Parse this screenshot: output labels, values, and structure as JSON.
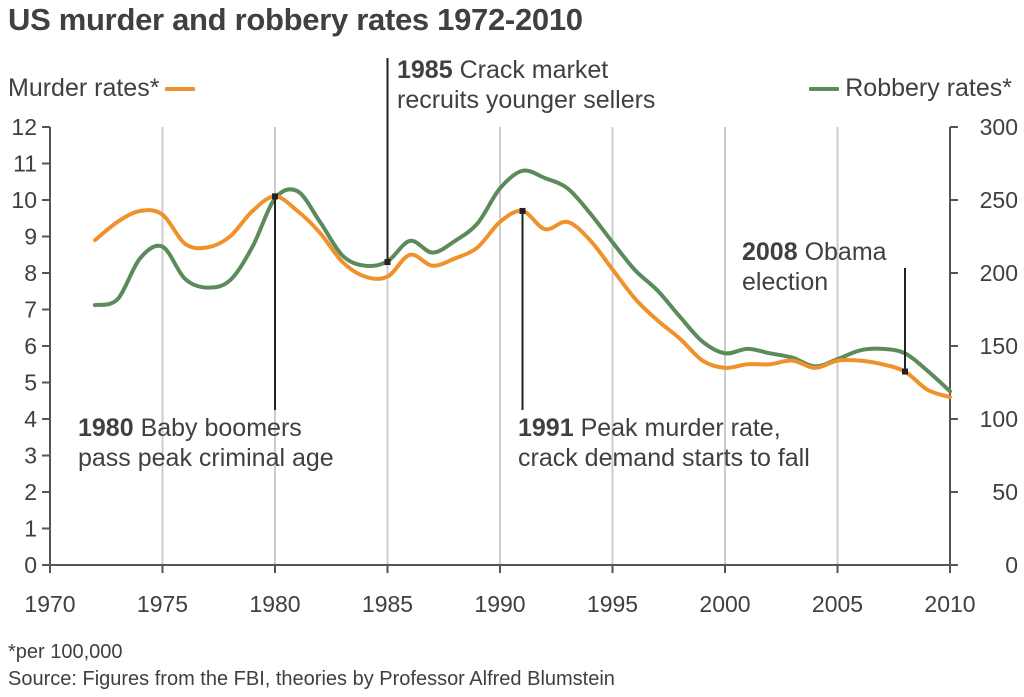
{
  "title": "US murder and robbery rates 1972-2010",
  "legend": {
    "murder": "Murder rates*",
    "robbery": "Robbery rates*"
  },
  "footnote": "*per 100,000",
  "source": "Source: Figures from the FBI, theories by Professor Alfred Blumstein",
  "colors": {
    "murder": "#f0922b",
    "robbery": "#5b8a5b",
    "grid": "#cccccc",
    "axis": "#555555",
    "text": "#404040"
  },
  "chart_data": {
    "type": "line",
    "title": "US murder and robbery rates 1972-2010",
    "x_ticks": [
      1970,
      1975,
      1980,
      1985,
      1990,
      1995,
      2000,
      2005,
      2010
    ],
    "xlim": [
      1970,
      2010
    ],
    "left_axis": {
      "ylim": [
        0,
        12
      ],
      "ticks": [
        0,
        1,
        2,
        3,
        4,
        5,
        6,
        7,
        8,
        9,
        10,
        11,
        12
      ]
    },
    "right_axis": {
      "ylim": [
        0,
        300
      ],
      "ticks": [
        0,
        50,
        100,
        150,
        200,
        250,
        300
      ]
    },
    "grid": "vertical",
    "legend_position": "top",
    "series": [
      {
        "name": "Murder rates*",
        "axis": "left",
        "x": [
          1972,
          1973,
          1974,
          1975,
          1976,
          1977,
          1978,
          1979,
          1980,
          1981,
          1982,
          1983,
          1984,
          1985,
          1986,
          1987,
          1988,
          1989,
          1990,
          1991,
          1992,
          1993,
          1994,
          1995,
          1996,
          1997,
          1998,
          1999,
          2000,
          2001,
          2002,
          2003,
          2004,
          2005,
          2006,
          2007,
          2008,
          2009,
          2010
        ],
        "values": [
          8.9,
          9.4,
          9.7,
          9.6,
          8.8,
          8.7,
          9.0,
          9.7,
          10.1,
          9.7,
          9.1,
          8.3,
          7.9,
          7.9,
          8.5,
          8.2,
          8.4,
          8.7,
          9.4,
          9.7,
          9.2,
          9.4,
          8.9,
          8.1,
          7.3,
          6.7,
          6.2,
          5.6,
          5.4,
          5.5,
          5.5,
          5.6,
          5.4,
          5.6,
          5.6,
          5.5,
          5.3,
          4.8,
          4.6
        ]
      },
      {
        "name": "Robbery rates*",
        "axis": "right",
        "x": [
          1972,
          1973,
          1974,
          1975,
          1976,
          1977,
          1978,
          1979,
          1980,
          1981,
          1982,
          1983,
          1984,
          1985,
          1986,
          1987,
          1988,
          1989,
          1990,
          1991,
          1992,
          1993,
          1994,
          1995,
          1996,
          1997,
          1998,
          1999,
          2000,
          2001,
          2002,
          2003,
          2004,
          2005,
          2006,
          2007,
          2008,
          2009,
          2010
        ],
        "values": [
          178,
          182,
          210,
          218,
          196,
          190,
          195,
          218,
          251,
          256,
          235,
          212,
          205,
          208,
          222,
          214,
          222,
          234,
          258,
          270,
          265,
          258,
          241,
          221,
          202,
          188,
          170,
          153,
          145,
          148,
          145,
          142,
          136,
          141,
          147,
          148,
          145,
          133,
          119
        ]
      }
    ],
    "annotations": [
      {
        "year": "1980",
        "text_lines": [
          "Baby boomers",
          "pass peak criminal age"
        ],
        "x": 1980,
        "y": 10.1
      },
      {
        "year": "1985",
        "text_lines": [
          "Crack market",
          "recruits younger sellers"
        ],
        "x": 1985,
        "y": 8.3
      },
      {
        "year": "1991",
        "text_lines": [
          "Peak murder rate,",
          "crack demand starts to fall"
        ],
        "x": 1991,
        "y": 9.7
      },
      {
        "year": "2008",
        "text_lines": [
          "Obama",
          "election"
        ],
        "x": 2008,
        "y": 5.3
      }
    ]
  }
}
